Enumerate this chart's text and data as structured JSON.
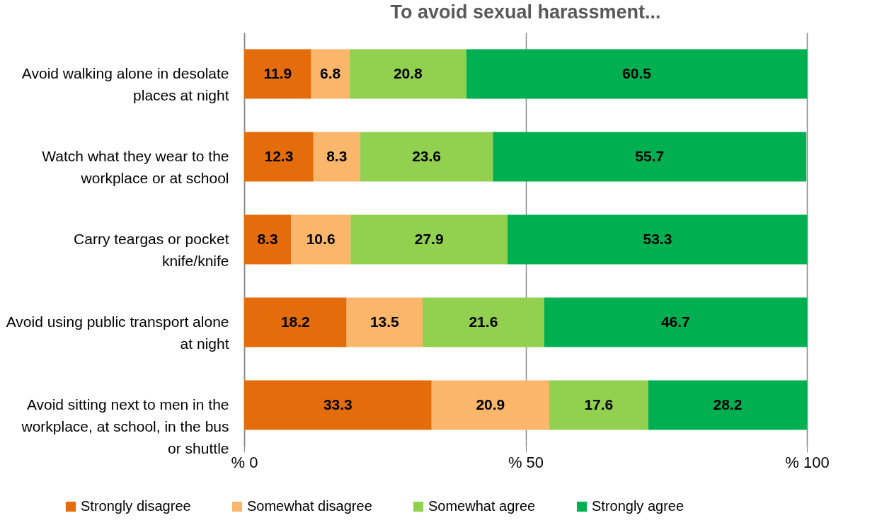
{
  "chart_data": {
    "type": "bar",
    "orientation": "horizontal",
    "stacked": true,
    "title": "To avoid sexual harassment...",
    "categories": [
      "Avoid walking alone in desolate places at night",
      "Watch what they wear to the workplace or at school",
      "Carry teargas or pocket knife/knife",
      "Avoid using public transport alone at night",
      "Avoid sitting next to men in the workplace, at school, in the bus or shuttle"
    ],
    "series": [
      {
        "name": "Strongly disagree",
        "color": "#e46c0a",
        "values": [
          11.9,
          12.3,
          8.3,
          18.2,
          33.3
        ]
      },
      {
        "name": "Somewhat disagree",
        "color": "#fab66a",
        "values": [
          6.8,
          8.3,
          10.6,
          13.5,
          20.9
        ]
      },
      {
        "name": "Somewhat agree",
        "color": "#92d050",
        "values": [
          20.8,
          23.6,
          27.9,
          21.6,
          17.6
        ]
      },
      {
        "name": "Strongly agree",
        "color": "#00b050",
        "values": [
          60.5,
          55.7,
          53.3,
          46.7,
          28.2
        ]
      }
    ],
    "xlim": [
      0,
      100
    ],
    "xticks": [
      {
        "value": 0,
        "label": "% 0"
      },
      {
        "value": 50,
        "label": "% 50"
      },
      {
        "value": 100,
        "label": "% 100"
      }
    ],
    "grid": "x",
    "legend": "bottom",
    "data_labels": true
  }
}
